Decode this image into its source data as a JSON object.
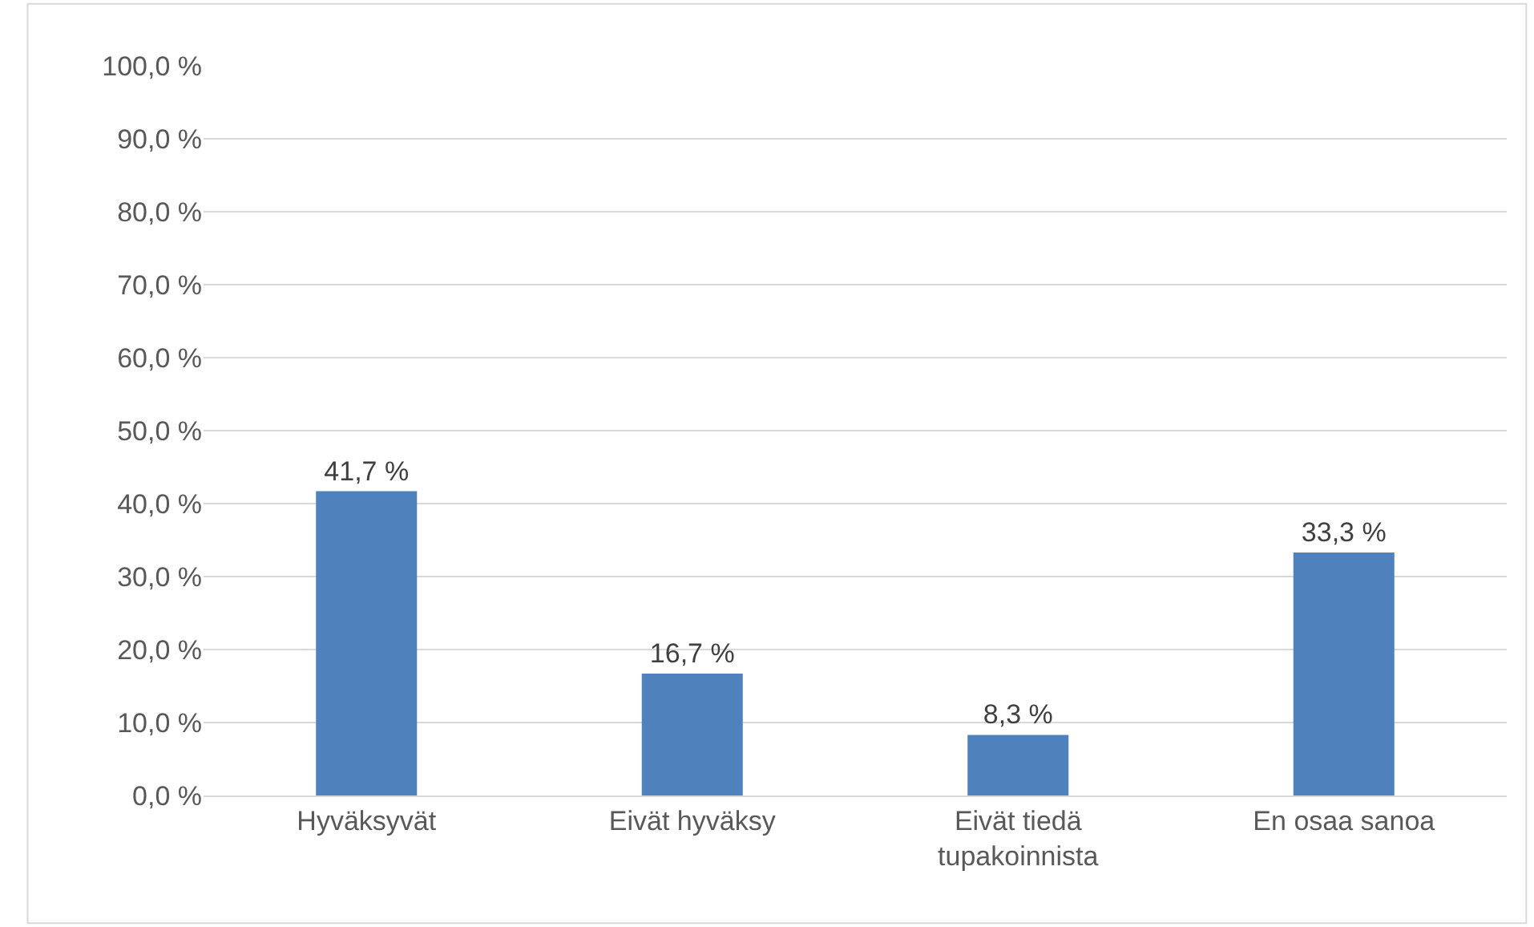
{
  "chart_data": {
    "type": "bar",
    "categories": [
      "Hyväksyvät",
      "Eivät hyväksy",
      "Eivät tiedä tupakoinnista",
      "En osaa sanoa"
    ],
    "values": [
      41.7,
      16.7,
      8.3,
      33.3
    ],
    "value_labels": [
      "41,7 %",
      "16,7 %",
      "8,3 %",
      "33,3 %"
    ],
    "color": "#4f81bd",
    "ylim": [
      0,
      100
    ],
    "yticks": [
      {
        "value": 0,
        "label": "0,0 %"
      },
      {
        "value": 10,
        "label": "10,0 %"
      },
      {
        "value": 20,
        "label": "20,0 %"
      },
      {
        "value": 30,
        "label": "30,0 %"
      },
      {
        "value": 40,
        "label": "40,0 %"
      },
      {
        "value": 50,
        "label": "50,0 %"
      },
      {
        "value": 60,
        "label": "60,0 %"
      },
      {
        "value": 70,
        "label": "70,0 %"
      },
      {
        "value": 80,
        "label": "80,0 %"
      },
      {
        "value": 90,
        "label": "90,0 %"
      },
      {
        "value": 100,
        "label": "100,0 %"
      }
    ],
    "grid": "y"
  }
}
